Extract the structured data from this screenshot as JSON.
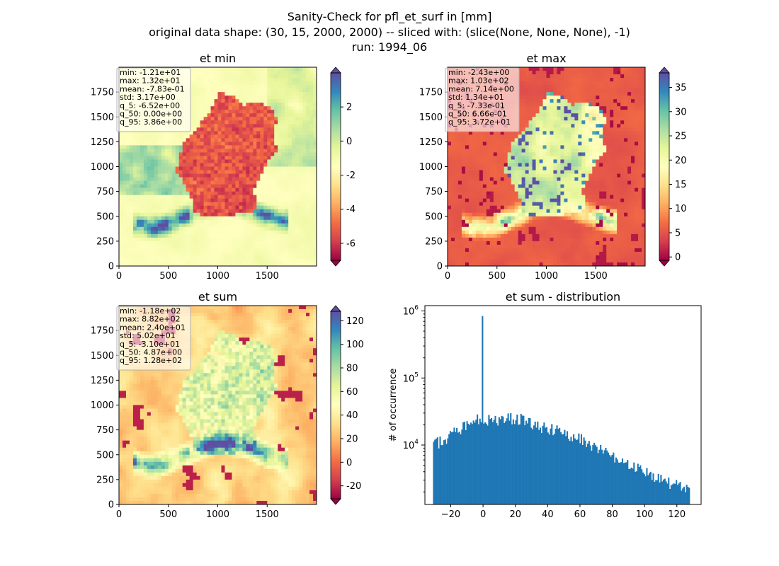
{
  "title": {
    "line1": "Sanity-Check for pfl_et_surf in [mm]",
    "line2": "original data shape: (30, 15, 2000, 2000) -- sliced with: (slice(None, None, None), -1)",
    "line3": "run: 1994_06"
  },
  "colors": {
    "spectral": [
      "#9e0142",
      "#d53e4f",
      "#f46d43",
      "#fdae61",
      "#fee08b",
      "#ffffbf",
      "#e6f598",
      "#abdda4",
      "#66c2a5",
      "#3288bd",
      "#5e4fa2"
    ],
    "hist_bar": "#1f77b4"
  },
  "chart_data": [
    {
      "type": "heatmap",
      "name": "et_min",
      "title": "et min",
      "x_ticks": [
        "0",
        "500",
        "1000",
        "1500"
      ],
      "y_ticks": [
        "0",
        "250",
        "500",
        "750",
        "1000",
        "1250",
        "1500",
        "1750"
      ],
      "xlim": [
        0,
        2000
      ],
      "ylim": [
        0,
        2000
      ],
      "colorbar": {
        "vmin": -7,
        "vmax": 4,
        "ticks": [
          "-6",
          "-4",
          "-2",
          "0",
          "2"
        ],
        "tick_values": [
          -6,
          -4,
          -2,
          0,
          2
        ],
        "extend": "both"
      },
      "stats": [
        "min: -1.21e+01",
        "max: 1.32e+01",
        "mean: -7.83e-01",
        "std: 3.17e+00",
        "q_5: -6.52e+00",
        "q_50: 0.00e+00",
        "q_95: 3.86e+00"
      ]
    },
    {
      "type": "heatmap",
      "name": "et_max",
      "title": "et max",
      "x_ticks": [
        "0",
        "500",
        "1000",
        "1500"
      ],
      "y_ticks": [
        "0",
        "250",
        "500",
        "750",
        "1000",
        "1250",
        "1500",
        "1750"
      ],
      "xlim": [
        0,
        2000
      ],
      "ylim": [
        0,
        2000
      ],
      "colorbar": {
        "vmin": -0.7,
        "vmax": 38,
        "ticks": [
          "0",
          "5",
          "10",
          "15",
          "20",
          "25",
          "30",
          "35"
        ],
        "tick_values": [
          0,
          5,
          10,
          15,
          20,
          25,
          30,
          35
        ],
        "extend": "both"
      },
      "stats": [
        "min: -2.43e+00",
        "max: 1.03e+02",
        "mean: 7.14e+00",
        "std: 1.34e+01",
        "q_5: -7.33e-01",
        "q_50: 6.66e-01",
        "q_95: 3.72e+01"
      ]
    },
    {
      "type": "heatmap",
      "name": "et_sum",
      "title": "et sum",
      "x_ticks": [
        "0",
        "500",
        "1000",
        "1500"
      ],
      "y_ticks": [
        "0",
        "250",
        "500",
        "750",
        "1000",
        "1250",
        "1500",
        "1750"
      ],
      "xlim": [
        0,
        2000
      ],
      "ylim": [
        0,
        2000
      ],
      "colorbar": {
        "vmin": -31,
        "vmax": 128,
        "ticks": [
          "-20",
          "0",
          "20",
          "40",
          "60",
          "80",
          "100",
          "120"
        ],
        "tick_values": [
          -20,
          0,
          20,
          40,
          60,
          80,
          100,
          120
        ],
        "extend": "both"
      },
      "stats": [
        "min: -1.18e+02",
        "max: 8.82e+02",
        "mean: 2.40e+01",
        "std: 5.02e+01",
        "q_5: -3.10e+01",
        "q_50: 4.87e+00",
        "q_95: 1.28e+02"
      ]
    },
    {
      "type": "bar",
      "name": "et_sum_distribution",
      "title": "et sum - distribution",
      "ylabel": "# of occurrence",
      "y_scale": "log",
      "xlim": [
        -36,
        135
      ],
      "ylim": [
        1300,
        1200000
      ],
      "x_ticks": [
        "−20",
        "0",
        "20",
        "40",
        "60",
        "80",
        "100",
        "120"
      ],
      "x_tick_values": [
        -20,
        0,
        20,
        40,
        60,
        80,
        100,
        120
      ],
      "y_ticks": [
        {
          "base": "10",
          "exp": "4",
          "value": 10000
        },
        {
          "base": "10",
          "exp": "5",
          "value": 100000
        },
        {
          "base": "10",
          "exp": "6",
          "value": 1000000
        }
      ],
      "bin_range": [
        -31,
        128
      ],
      "bin_count": 200,
      "anchors": [
        [
          -31,
          10500
        ],
        [
          -25,
          11500
        ],
        [
          -20,
          14000
        ],
        [
          -15,
          17000
        ],
        [
          -10,
          20000
        ],
        [
          -5,
          23000
        ],
        [
          -1,
          27000
        ],
        [
          2,
          24000
        ],
        [
          5,
          23500
        ],
        [
          10,
          24000
        ],
        [
          15,
          25000
        ],
        [
          20,
          25500
        ],
        [
          25,
          24000
        ],
        [
          30,
          20500
        ],
        [
          35,
          19000
        ],
        [
          40,
          18000
        ],
        [
          45,
          17000
        ],
        [
          50,
          15500
        ],
        [
          55,
          14000
        ],
        [
          60,
          12500
        ],
        [
          65,
          11000
        ],
        [
          70,
          9000
        ],
        [
          75,
          8000
        ],
        [
          80,
          7000
        ],
        [
          85,
          6000
        ],
        [
          90,
          5000
        ],
        [
          95,
          4500
        ],
        [
          100,
          4000
        ],
        [
          105,
          3500
        ],
        [
          110,
          3000
        ],
        [
          115,
          2800
        ],
        [
          120,
          2500
        ],
        [
          125,
          2300
        ],
        [
          128,
          2200
        ]
      ],
      "spike": {
        "x": -0.4,
        "value": 840000
      }
    }
  ]
}
